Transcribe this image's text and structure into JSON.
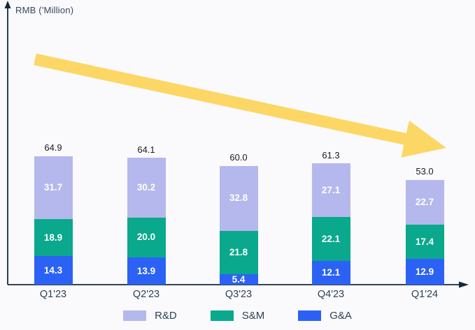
{
  "chart_data": {
    "type": "bar",
    "stacked": true,
    "title": "",
    "ylabel": "RMB ('Million)",
    "xlabel": "",
    "grid": false,
    "legend_position": "bottom",
    "categories": [
      "Q1'23",
      "Q2'23",
      "Q3'23",
      "Q4'23",
      "Q1'24"
    ],
    "series": [
      {
        "name": "G&A",
        "color": "#2b62f5",
        "values": [
          14.3,
          13.9,
          5.4,
          12.1,
          12.9
        ]
      },
      {
        "name": "S&M",
        "color": "#0aa88c",
        "values": [
          18.9,
          20.0,
          21.8,
          22.1,
          17.4
        ]
      },
      {
        "name": "R&D",
        "color": "#b5b8ec",
        "values": [
          31.7,
          30.2,
          32.8,
          27.1,
          22.7
        ]
      }
    ],
    "totals": [
      64.9,
      64.1,
      60.0,
      61.3,
      53.0
    ],
    "legend": [
      "R&D",
      "S&M",
      "G&A"
    ],
    "annotation": {
      "trend_arrow": {
        "direction": "down-right",
        "color": "#fcd765"
      }
    },
    "value_label_color": "#ffffff",
    "total_label_color": "#1b1b1b",
    "axis_color": "#15293d"
  }
}
